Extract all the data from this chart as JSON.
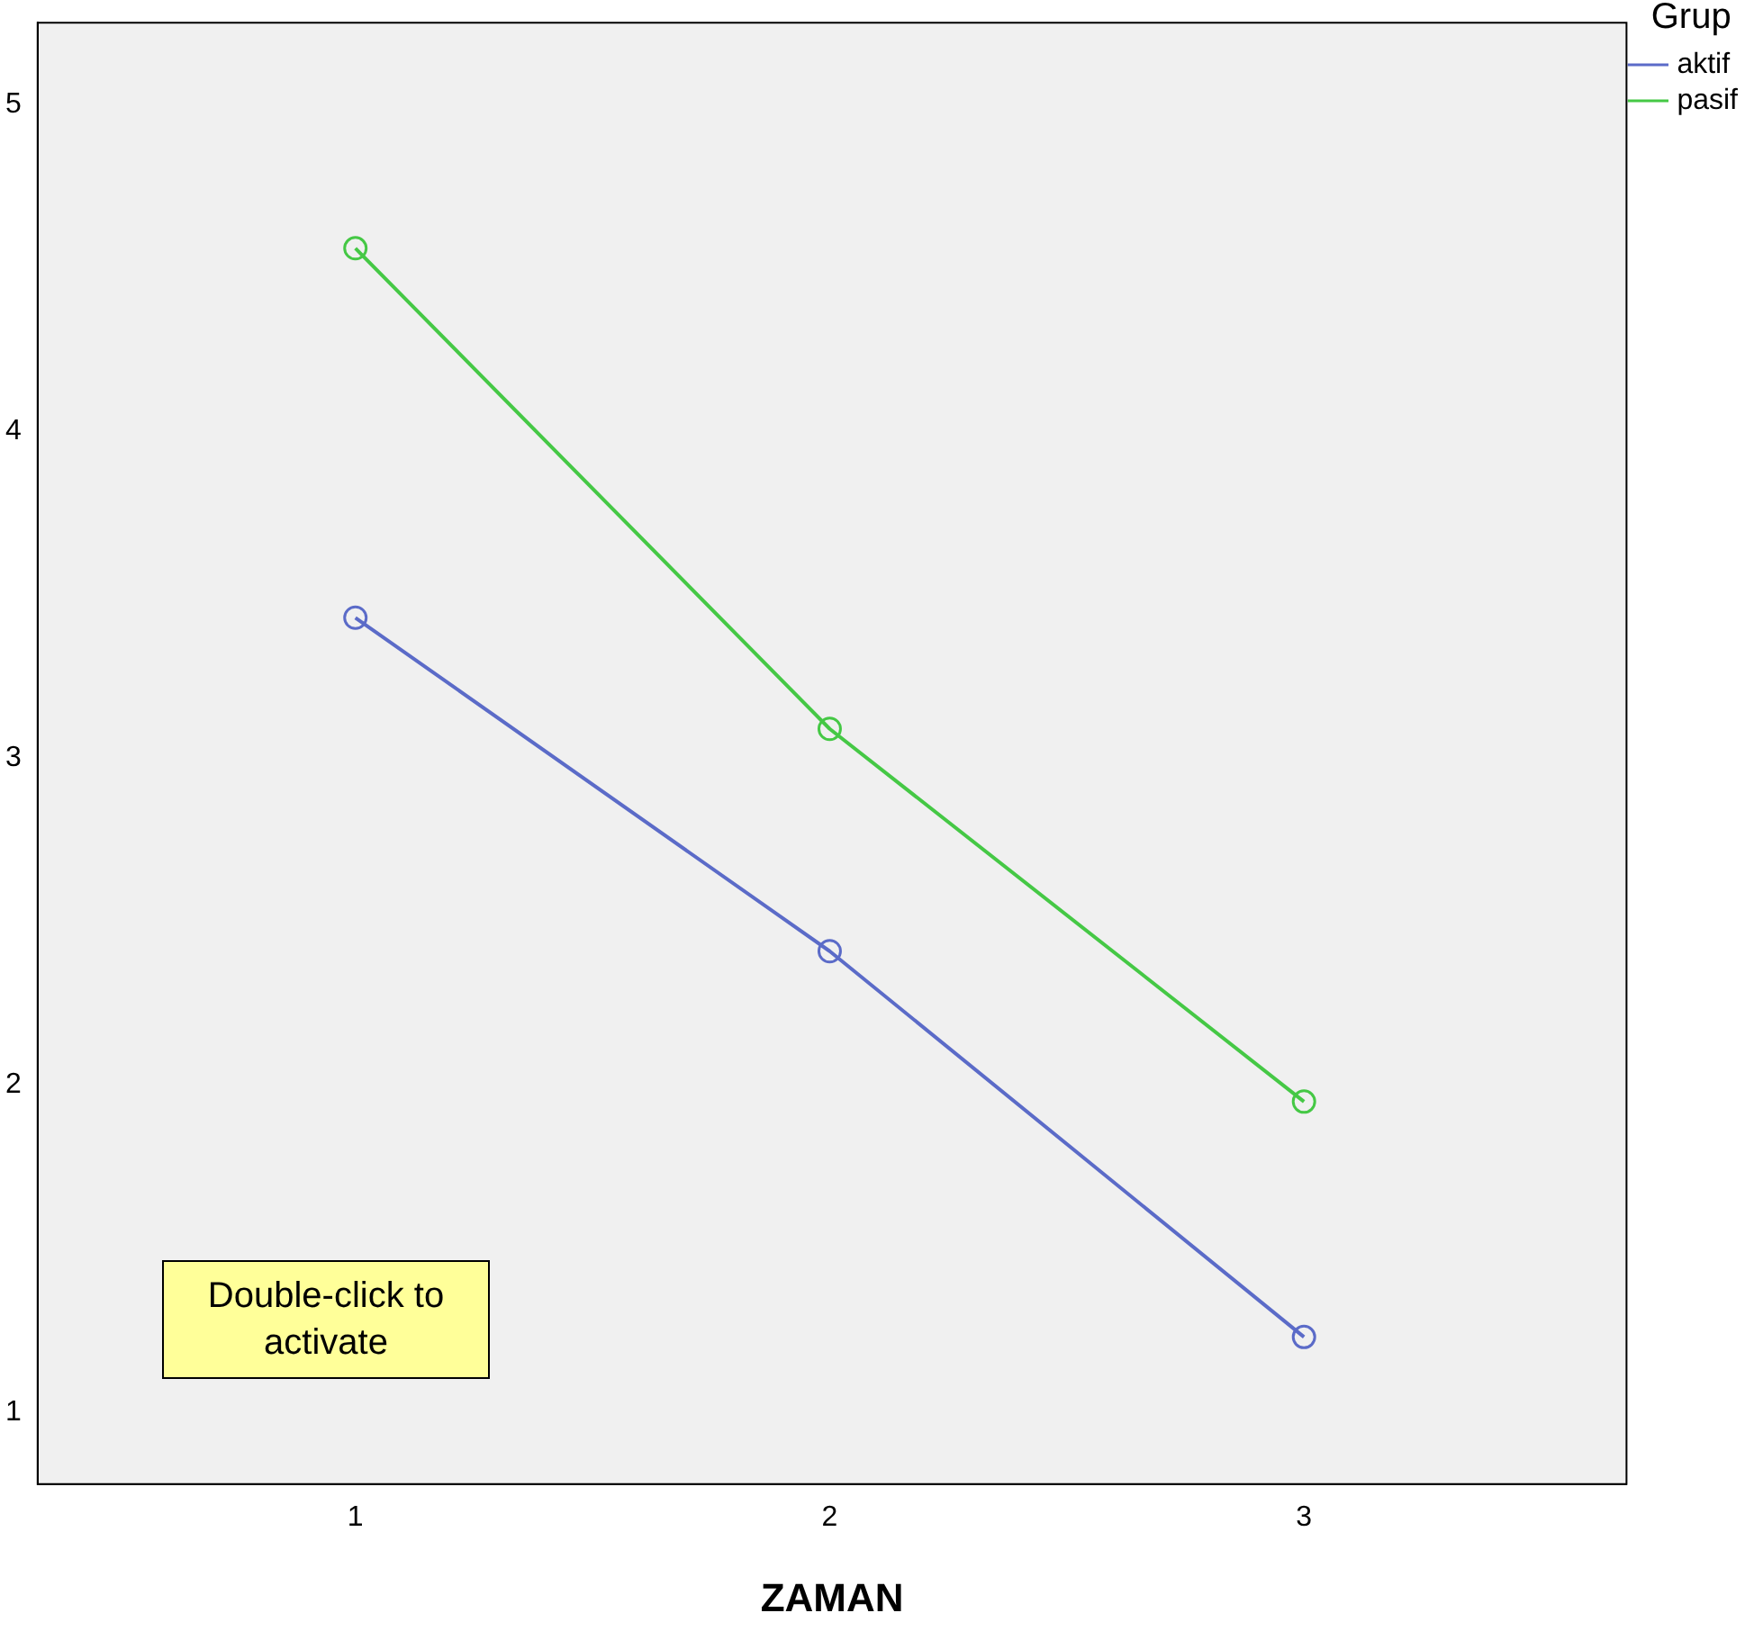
{
  "chart_data": {
    "type": "line",
    "xlabel": "ZAMAN",
    "legend_title": "Grup",
    "x": [
      1,
      2,
      3
    ],
    "series": [
      {
        "name": "aktif",
        "color": "#5b6bc8",
        "values": [
          3.43,
          2.41,
          1.23
        ]
      },
      {
        "name": "pasif",
        "color": "#45c845",
        "values": [
          4.56,
          3.09,
          1.95
        ]
      }
    ],
    "xlim": [
      0.33,
      3.68
    ],
    "xticks": [
      1,
      2,
      3
    ],
    "ylim": [
      0.78,
      5.25
    ],
    "yticks": [
      1,
      2,
      3,
      4,
      5
    ],
    "grid": false,
    "legend": "top right",
    "marker": "circle",
    "line_style": "solid",
    "annotations": [
      "Double-click to activate"
    ]
  }
}
